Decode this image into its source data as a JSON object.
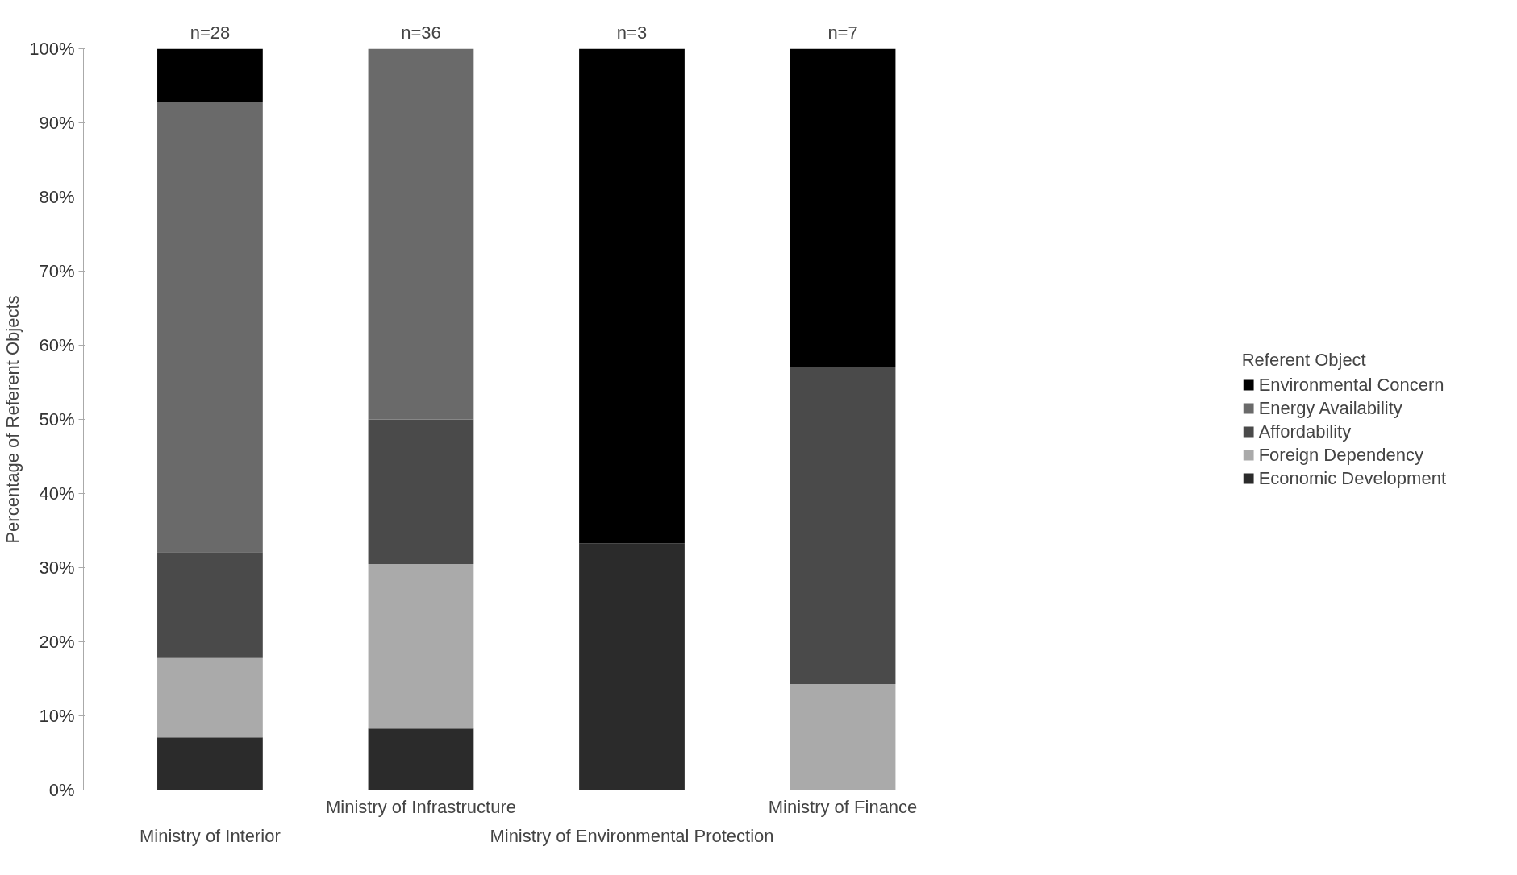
{
  "chart_data": {
    "type": "bar",
    "stacked": true,
    "categories": [
      "Ministry of Interior",
      "Ministry of Infrastructure",
      "Ministry of Environmental Protection",
      "Ministry of Finance"
    ],
    "series": [
      {
        "name": "Economic Development",
        "color": "#2b2b2b",
        "values": [
          7.1,
          8.3,
          33.3,
          0
        ]
      },
      {
        "name": "Foreign Dependency",
        "color": "#aaaaaa",
        "values": [
          10.7,
          22.2,
          0,
          14.3
        ]
      },
      {
        "name": "Affordability",
        "color": "#4a4a4a",
        "values": [
          14.3,
          19.5,
          0,
          42.8
        ]
      },
      {
        "name": "Energy Availability",
        "color": "#6a6a6a",
        "values": [
          60.7,
          50.0,
          0,
          0
        ]
      },
      {
        "name": "Environmental Concern",
        "color": "#000000",
        "values": [
          7.2,
          0,
          66.7,
          42.9
        ]
      }
    ],
    "ylabel": "Percentage of Referent Objects",
    "legend_title": "Referent Object",
    "legend": "right",
    "ylim": [
      0,
      100
    ],
    "yticks": [
      {
        "value": 0,
        "label": "0%"
      },
      {
        "value": 10,
        "label": "10%"
      },
      {
        "value": 20,
        "label": "20%"
      },
      {
        "value": 30,
        "label": "30%"
      },
      {
        "value": 40,
        "label": "40%"
      },
      {
        "value": 50,
        "label": "50%"
      },
      {
        "value": 60,
        "label": "60%"
      },
      {
        "value": 70,
        "label": "70%"
      },
      {
        "value": 80,
        "label": "80%"
      },
      {
        "value": 90,
        "label": "90%"
      },
      {
        "value": 100,
        "label": "100%"
      }
    ],
    "grid": false,
    "annotations": [
      {
        "text": "n=28",
        "x": "Ministry of Interior",
        "y": 100
      },
      {
        "text": "n=36",
        "x": "Ministry of Infrastructure",
        "y": 100
      },
      {
        "text": "n=3",
        "x": "Ministry of Environmental Protection",
        "y": 100
      },
      {
        "text": "n=7",
        "x": "Ministry of Finance",
        "y": 100
      }
    ]
  }
}
